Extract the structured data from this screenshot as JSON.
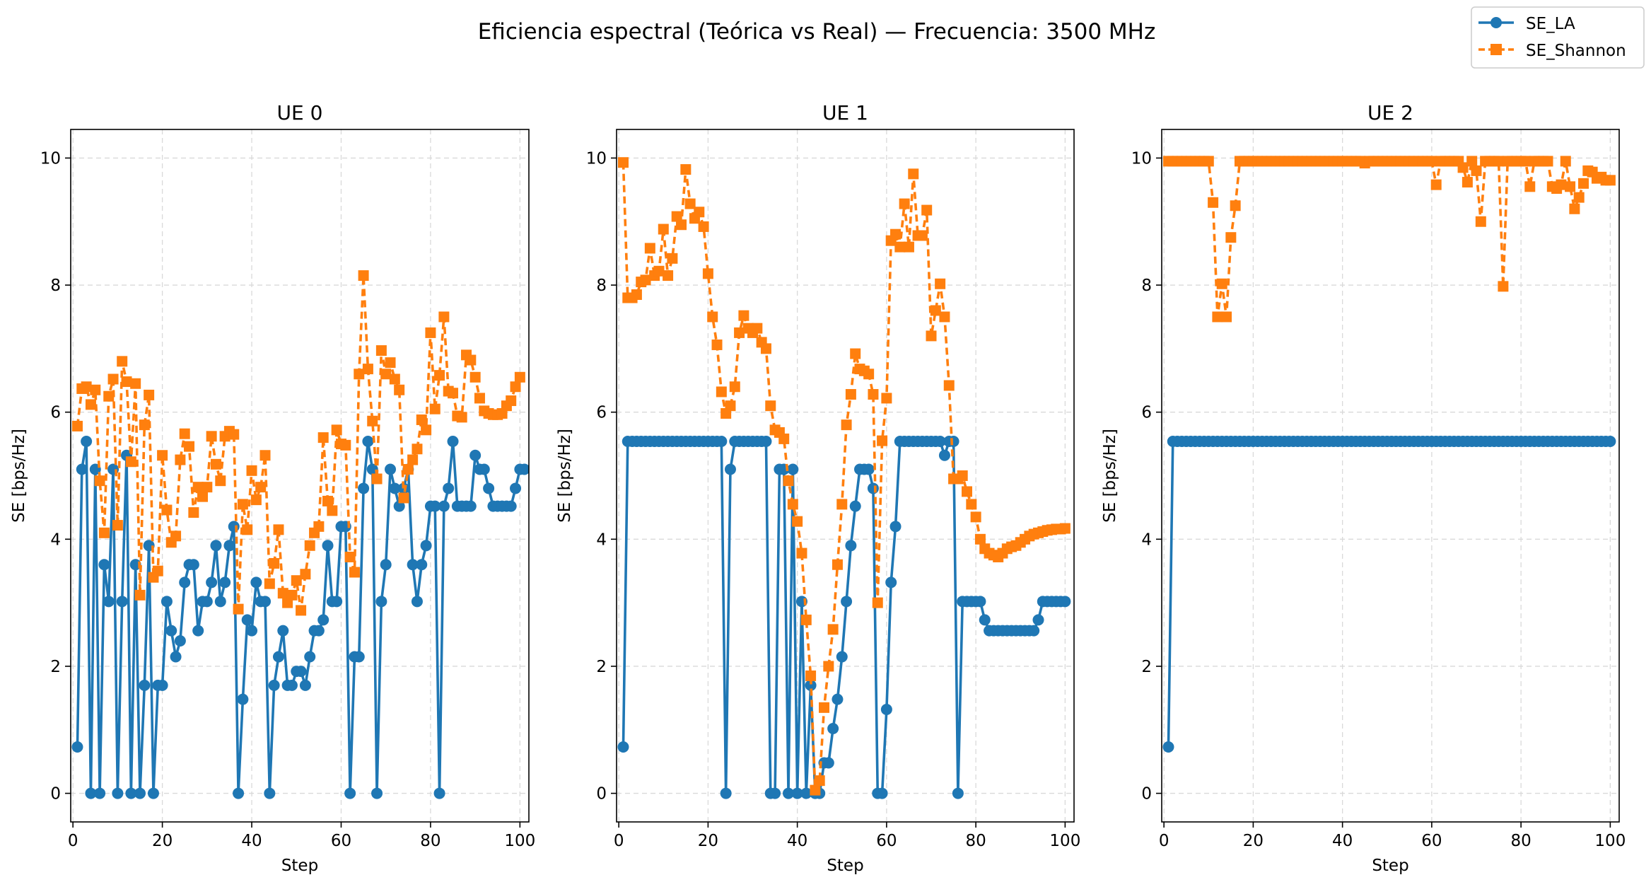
{
  "figure": {
    "title": "Eficiencia espectral (Teórica vs Real) — Frecuencia: 3500 MHz"
  },
  "legend": {
    "placement": "top-right",
    "items": [
      {
        "label": "SE_LA",
        "color": "#1f77b4",
        "marker": "circle",
        "linestyle": "solid"
      },
      {
        "label": "SE_Shannon",
        "color": "#ff7f0e",
        "marker": "square",
        "linestyle": "dashed"
      }
    ]
  },
  "colors": {
    "se_la": "#1f77b4",
    "se_shannon": "#ff7f0e",
    "grid": "#d9d9d9"
  },
  "chart_data": [
    {
      "type": "line",
      "title": "UE 0",
      "xlabel": "Step",
      "ylabel": "SE [bps/Hz]",
      "xlim": [
        -0.5,
        102
      ],
      "ylim": [
        -0.45,
        10.45
      ],
      "xticks": [
        0,
        20,
        40,
        60,
        80,
        100
      ],
      "yticks": [
        0,
        2,
        4,
        6,
        8,
        10
      ],
      "grid": true,
      "x_start": 1,
      "series": [
        {
          "name": "SE_LA",
          "values": [
            0.73,
            5.1,
            5.54,
            0,
            5.1,
            0,
            3.6,
            3.02,
            5.1,
            0,
            3.02,
            5.32,
            0,
            3.6,
            0,
            1.7,
            3.9,
            0,
            1.7,
            1.7,
            3.02,
            2.56,
            2.15,
            2.4,
            3.32,
            3.6,
            3.6,
            2.56,
            3.02,
            3.02,
            3.32,
            3.9,
            3.02,
            3.32,
            3.9,
            4.2,
            0,
            1.48,
            2.73,
            2.56,
            3.32,
            3.02,
            3.02,
            0,
            1.7,
            2.15,
            2.56,
            1.7,
            1.7,
            1.92,
            1.92,
            1.7,
            2.15,
            2.56,
            2.56,
            2.73,
            3.9,
            3.02,
            3.02,
            4.2,
            4.2,
            0,
            2.15,
            2.15,
            4.8,
            5.54,
            5.1,
            0,
            3.02,
            3.6,
            5.1,
            4.8,
            4.52,
            4.8,
            5.1,
            3.6,
            3.02,
            3.6,
            3.9,
            4.52,
            4.52,
            0,
            4.52,
            4.8,
            5.54,
            4.52,
            4.52,
            4.52,
            4.52,
            5.32,
            5.1,
            5.1,
            4.8,
            4.52,
            4.52,
            4.52,
            4.52,
            4.52,
            4.8,
            5.1,
            5.1
          ]
        },
        {
          "name": "SE_Shannon",
          "values": [
            5.78,
            6.37,
            6.4,
            6.12,
            6.35,
            4.92,
            4.1,
            6.25,
            6.52,
            4.22,
            6.8,
            6.48,
            5.22,
            6.45,
            3.12,
            5.8,
            6.27,
            3.4,
            3.5,
            5.32,
            4.46,
            3.95,
            4.05,
            5.25,
            5.66,
            5.46,
            4.42,
            4.82,
            4.67,
            4.82,
            5.62,
            5.18,
            4.92,
            5.62,
            5.7,
            5.65,
            2.9,
            4.55,
            4.15,
            5.08,
            4.62,
            4.82,
            5.32,
            3.3,
            3.62,
            4.15,
            3.15,
            3.0,
            3.12,
            3.35,
            2.88,
            3.45,
            3.9,
            4.1,
            4.2,
            5.6,
            4.6,
            4.45,
            5.72,
            5.5,
            5.48,
            3.72,
            3.48,
            6.6,
            8.15,
            6.68,
            5.86,
            4.95,
            6.97,
            6.6,
            6.78,
            6.52,
            6.35,
            4.65,
            5.1,
            5.25,
            5.42,
            5.88,
            5.72,
            7.25,
            6.05,
            6.58,
            7.5,
            6.33,
            6.3,
            5.94,
            5.92,
            6.9,
            6.82,
            6.55,
            6.22,
            6.02,
            5.98,
            5.96,
            5.96,
            5.98,
            6.1,
            6.18,
            6.4,
            6.55
          ]
        }
      ]
    },
    {
      "type": "line",
      "title": "UE 1",
      "xlabel": "Step",
      "ylabel": "SE [bps/Hz]",
      "xlim": [
        -0.5,
        102
      ],
      "ylim": [
        -0.45,
        10.45
      ],
      "xticks": [
        0,
        20,
        40,
        60,
        80,
        100
      ],
      "yticks": [
        0,
        2,
        4,
        6,
        8,
        10
      ],
      "grid": true,
      "x_start": 1,
      "series": [
        {
          "name": "SE_LA",
          "values": [
            0.73,
            5.54,
            5.54,
            5.54,
            5.54,
            5.54,
            5.54,
            5.54,
            5.54,
            5.54,
            5.54,
            5.54,
            5.54,
            5.54,
            5.54,
            5.54,
            5.54,
            5.54,
            5.54,
            5.54,
            5.54,
            5.54,
            5.54,
            0,
            5.1,
            5.54,
            5.54,
            5.54,
            5.54,
            5.54,
            5.54,
            5.54,
            5.54,
            0,
            0,
            5.1,
            5.1,
            0,
            5.1,
            0,
            3.02,
            0,
            1.7,
            0,
            0,
            0.48,
            0.48,
            1.02,
            1.48,
            2.15,
            3.02,
            3.9,
            4.52,
            5.1,
            5.1,
            5.1,
            4.8,
            0,
            0,
            1.32,
            3.32,
            4.2,
            5.54,
            5.54,
            5.54,
            5.54,
            5.54,
            5.54,
            5.54,
            5.54,
            5.54,
            5.54,
            5.32,
            5.54,
            5.54,
            0,
            3.02,
            3.02,
            3.02,
            3.02,
            3.02,
            2.73,
            2.56,
            2.56,
            2.56,
            2.56,
            2.56,
            2.56,
            2.56,
            2.56,
            2.56,
            2.56,
            2.56,
            2.73,
            3.02,
            3.02,
            3.02,
            3.02,
            3.02,
            3.02
          ]
        },
        {
          "name": "SE_Shannon",
          "values": [
            9.93,
            7.8,
            7.8,
            7.85,
            8.05,
            8.08,
            8.58,
            8.15,
            8.22,
            8.88,
            8.15,
            8.42,
            9.08,
            8.95,
            9.82,
            9.28,
            9.05,
            9.15,
            8.92,
            8.18,
            7.5,
            7.06,
            6.32,
            5.98,
            6.1,
            6.4,
            7.25,
            7.52,
            7.32,
            7.25,
            7.32,
            7.1,
            7.0,
            6.1,
            5.72,
            5.68,
            5.58,
            4.92,
            4.55,
            4.28,
            3.78,
            2.73,
            1.85,
            0.05,
            0.2,
            1.35,
            2.0,
            2.58,
            3.6,
            4.55,
            5.8,
            6.28,
            6.92,
            6.68,
            6.65,
            6.6,
            6.28,
            3.0,
            5.55,
            6.22,
            8.7,
            8.8,
            8.6,
            9.28,
            8.6,
            9.75,
            8.78,
            8.78,
            9.18,
            7.2,
            7.6,
            8.02,
            7.5,
            6.42,
            4.95,
            4.95,
            5.0,
            4.75,
            4.55,
            4.35,
            4.0,
            3.85,
            3.78,
            3.75,
            3.72,
            3.78,
            3.85,
            3.88,
            3.9,
            3.95,
            4.0,
            4.05,
            4.08,
            4.1,
            4.12,
            4.14,
            4.15,
            4.16,
            4.16,
            4.17
          ]
        }
      ]
    },
    {
      "type": "line",
      "title": "UE 2",
      "xlabel": "Step",
      "ylabel": "SE [bps/Hz]",
      "xlim": [
        -0.5,
        102
      ],
      "ylim": [
        -0.45,
        10.45
      ],
      "xticks": [
        0,
        20,
        40,
        60,
        80,
        100
      ],
      "yticks": [
        0,
        2,
        4,
        6,
        8,
        10
      ],
      "grid": true,
      "x_start": 1,
      "series": [
        {
          "name": "SE_LA",
          "values": [
            0.73,
            5.54,
            5.54,
            5.54,
            5.54,
            5.54,
            5.54,
            5.54,
            5.54,
            5.54,
            5.54,
            5.54,
            5.54,
            5.54,
            5.54,
            5.54,
            5.54,
            5.54,
            5.54,
            5.54,
            5.54,
            5.54,
            5.54,
            5.54,
            5.54,
            5.54,
            5.54,
            5.54,
            5.54,
            5.54,
            5.54,
            5.54,
            5.54,
            5.54,
            5.54,
            5.54,
            5.54,
            5.54,
            5.54,
            5.54,
            5.54,
            5.54,
            5.54,
            5.54,
            5.54,
            5.54,
            5.54,
            5.54,
            5.54,
            5.54,
            5.54,
            5.54,
            5.54,
            5.54,
            5.54,
            5.54,
            5.54,
            5.54,
            5.54,
            5.54,
            5.54,
            5.54,
            5.54,
            5.54,
            5.54,
            5.54,
            5.54,
            5.54,
            5.54,
            5.54,
            5.54,
            5.54,
            5.54,
            5.54,
            5.54,
            5.54,
            5.54,
            5.54,
            5.54,
            5.54,
            5.54,
            5.54,
            5.54,
            5.54,
            5.54,
            5.54,
            5.54,
            5.54,
            5.54,
            5.54,
            5.54,
            5.54,
            5.54,
            5.54,
            5.54,
            5.54,
            5.54,
            5.54,
            5.54,
            5.54
          ]
        },
        {
          "name": "SE_Shannon",
          "values": [
            9.95,
            9.95,
            9.95,
            9.95,
            9.95,
            9.95,
            9.95,
            9.95,
            9.95,
            9.95,
            9.3,
            7.5,
            8.02,
            7.5,
            8.75,
            9.25,
            9.95,
            9.95,
            9.95,
            9.95,
            9.95,
            9.95,
            9.95,
            9.95,
            9.95,
            9.95,
            9.95,
            9.95,
            9.95,
            9.95,
            9.95,
            9.95,
            9.95,
            9.95,
            9.95,
            9.95,
            9.95,
            9.95,
            9.95,
            9.95,
            9.95,
            9.95,
            9.95,
            9.95,
            9.92,
            9.95,
            9.95,
            9.95,
            9.95,
            9.95,
            9.95,
            9.95,
            9.95,
            9.95,
            9.95,
            9.95,
            9.95,
            9.95,
            9.95,
            9.95,
            9.58,
            9.95,
            9.95,
            9.95,
            9.95,
            9.95,
            9.85,
            9.62,
            9.95,
            9.8,
            9.0,
            9.95,
            9.95,
            9.95,
            9.95,
            7.98,
            9.95,
            9.95,
            9.95,
            9.95,
            9.95,
            9.55,
            9.95,
            9.95,
            9.95,
            9.95,
            9.55,
            9.52,
            9.58,
            9.95,
            9.55,
            9.2,
            9.38,
            9.6,
            9.8,
            9.78,
            9.68,
            9.7,
            9.65,
            9.65
          ]
        }
      ]
    }
  ]
}
